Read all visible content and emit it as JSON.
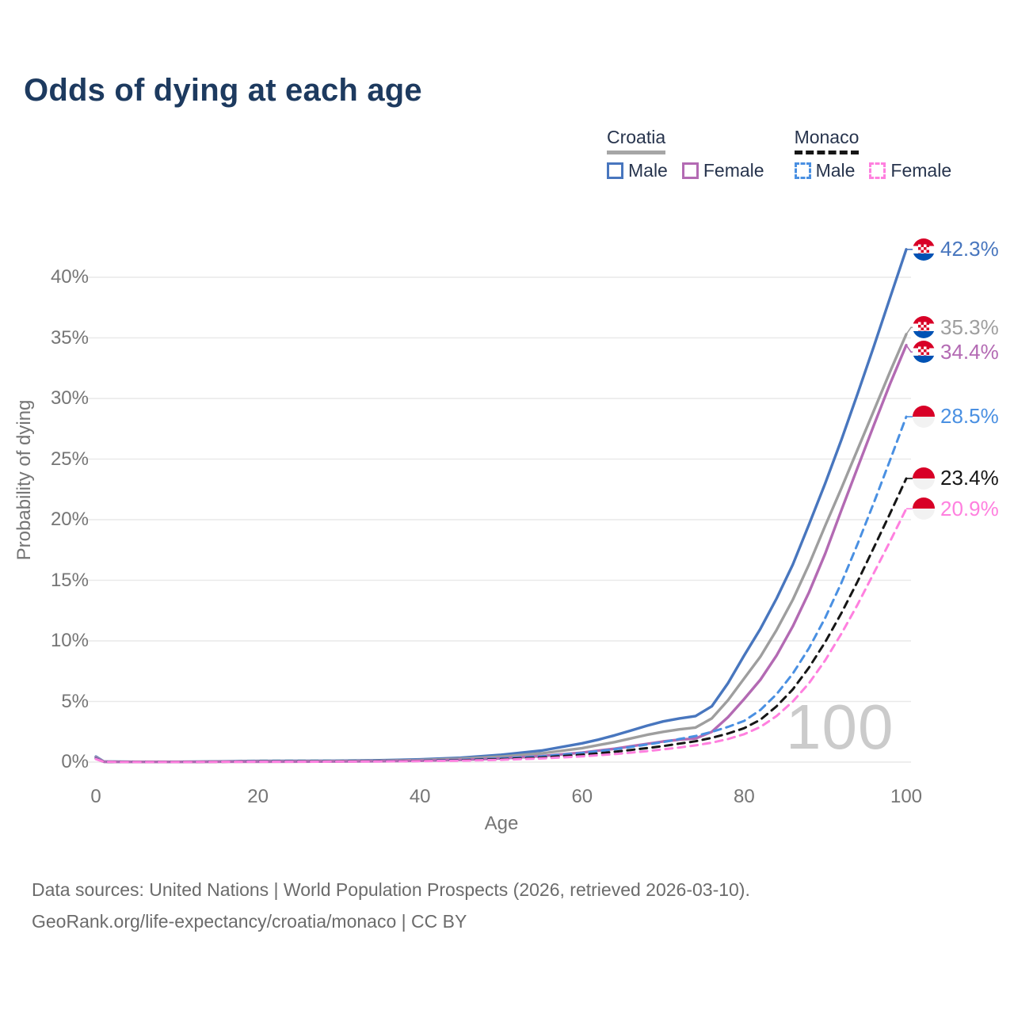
{
  "title": "Odds of dying at each age",
  "legend": {
    "groups": [
      {
        "country": "Croatia",
        "line_style": "solid",
        "line_color": "#a6a6a6",
        "items": [
          {
            "label": "Male",
            "color": "#4876be"
          },
          {
            "label": "Female",
            "color": "#b36ab3"
          }
        ]
      },
      {
        "country": "Monaco",
        "line_style": "dashed",
        "line_color": "#161616",
        "items": [
          {
            "label": "Male",
            "color": "#4a90e2"
          },
          {
            "label": "Female",
            "color": "#ff80df"
          }
        ]
      }
    ]
  },
  "chart_data": {
    "type": "line",
    "title": "Odds of dying at each age",
    "xlabel": "Age",
    "ylabel": "Probability of dying",
    "x_ticks": [
      0,
      20,
      40,
      60,
      80,
      100
    ],
    "y_ticks": [
      "0%",
      "5%",
      "10%",
      "15%",
      "20%",
      "25%",
      "30%",
      "35%",
      "40%"
    ],
    "xlim": [
      0,
      100
    ],
    "ylim_pct": [
      0,
      43
    ],
    "grid": "horizontal",
    "legend_position": "top-right",
    "hover_age_label": "100",
    "ages": [
      0,
      1,
      2,
      5,
      10,
      15,
      20,
      25,
      30,
      35,
      40,
      45,
      50,
      55,
      60,
      62,
      64,
      66,
      68,
      70,
      72,
      74,
      76,
      78,
      80,
      82,
      84,
      86,
      88,
      90,
      92,
      94,
      96,
      98,
      100
    ],
    "series": [
      {
        "name": "Croatia Male",
        "country": "Croatia",
        "sex": "Male",
        "color": "#4876be",
        "dashed": false,
        "end_label": "42.3%",
        "values_pct": [
          0.45,
          0.04,
          0.03,
          0.02,
          0.02,
          0.05,
          0.09,
          0.1,
          0.11,
          0.15,
          0.22,
          0.35,
          0.6,
          0.95,
          1.55,
          1.85,
          2.2,
          2.6,
          3.0,
          3.35,
          3.6,
          3.8,
          4.6,
          6.5,
          8.8,
          11.0,
          13.5,
          16.3,
          19.6,
          23.0,
          26.6,
          30.4,
          34.3,
          38.3,
          42.3
        ]
      },
      {
        "name": "Croatia All",
        "country": "Croatia",
        "sex": "All",
        "color": "#9e9e9e",
        "dashed": false,
        "end_label": "35.3%",
        "values_pct": [
          0.4,
          0.035,
          0.025,
          0.018,
          0.018,
          0.04,
          0.07,
          0.075,
          0.085,
          0.11,
          0.17,
          0.28,
          0.45,
          0.72,
          1.15,
          1.4,
          1.65,
          1.95,
          2.25,
          2.5,
          2.7,
          2.85,
          3.6,
          5.1,
          6.9,
          8.7,
          10.9,
          13.4,
          16.3,
          19.5,
          22.6,
          25.8,
          29.0,
          32.2,
          35.3
        ]
      },
      {
        "name": "Croatia Female",
        "country": "Croatia",
        "sex": "Female",
        "color": "#b36ab3",
        "dashed": false,
        "end_label": "34.4%",
        "values_pct": [
          0.35,
          0.03,
          0.02,
          0.015,
          0.015,
          0.025,
          0.035,
          0.04,
          0.05,
          0.07,
          0.11,
          0.18,
          0.3,
          0.5,
          0.78,
          0.95,
          1.1,
          1.3,
          1.5,
          1.7,
          1.85,
          1.95,
          2.5,
          3.7,
          5.2,
          6.8,
          8.8,
          11.2,
          14.0,
          17.2,
          20.8,
          24.3,
          27.8,
          31.2,
          34.4
        ]
      },
      {
        "name": "Monaco Male",
        "country": "Monaco",
        "sex": "Male",
        "color": "#4a90e2",
        "dashed": true,
        "end_label": "28.5%",
        "values_pct": [
          0.3,
          0.025,
          0.018,
          0.012,
          0.012,
          0.03,
          0.055,
          0.06,
          0.065,
          0.085,
          0.12,
          0.19,
          0.3,
          0.48,
          0.75,
          0.9,
          1.05,
          1.25,
          1.45,
          1.65,
          1.9,
          2.15,
          2.5,
          2.9,
          3.4,
          4.3,
          5.6,
          7.3,
          9.4,
          11.9,
          14.8,
          18.0,
          21.4,
          24.9,
          28.5
        ]
      },
      {
        "name": "Monaco All",
        "country": "Monaco",
        "sex": "All",
        "color": "#161616",
        "dashed": true,
        "end_label": "23.4%",
        "values_pct": [
          0.27,
          0.022,
          0.015,
          0.01,
          0.01,
          0.025,
          0.045,
          0.05,
          0.055,
          0.07,
          0.1,
          0.15,
          0.24,
          0.38,
          0.6,
          0.72,
          0.85,
          1.0,
          1.15,
          1.32,
          1.52,
          1.72,
          2.0,
          2.35,
          2.8,
          3.5,
          4.6,
          6.0,
          7.8,
          9.9,
          12.3,
          14.9,
          17.7,
          20.5,
          23.4
        ]
      },
      {
        "name": "Monaco Female",
        "country": "Monaco",
        "sex": "Female",
        "color": "#ff80df",
        "dashed": true,
        "end_label": "20.9%",
        "values_pct": [
          0.25,
          0.02,
          0.013,
          0.009,
          0.009,
          0.02,
          0.03,
          0.035,
          0.04,
          0.055,
          0.08,
          0.12,
          0.19,
          0.3,
          0.47,
          0.56,
          0.66,
          0.78,
          0.9,
          1.05,
          1.2,
          1.38,
          1.6,
          1.9,
          2.3,
          2.9,
          3.8,
          5.0,
          6.5,
          8.4,
          10.6,
          13.0,
          15.6,
          18.2,
          20.9
        ]
      }
    ],
    "flag_colors": {
      "croatia": [
        "#d80027",
        "#ffffff",
        "#0052b4"
      ],
      "monaco": [
        "#d80027",
        "#f2f2f2"
      ]
    }
  },
  "footer": {
    "line1": "Data sources: United Nations | World Population Prospects (2026, retrieved 2026-03-10).",
    "line2": "GeoRank.org/life-expectancy/croatia/monaco | CC BY"
  }
}
